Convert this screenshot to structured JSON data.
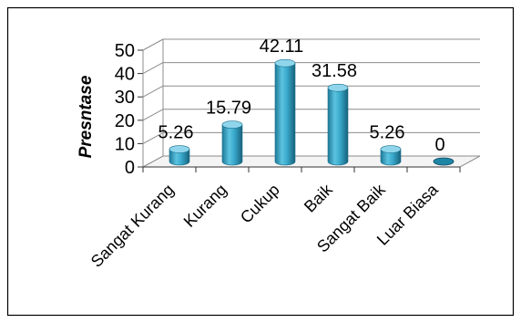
{
  "chart_data": {
    "type": "bar",
    "ylabel": "Presntase",
    "categories": [
      "Sangat Kurang",
      "Kurang",
      "Cukup",
      "Baik",
      "Sangat Baik",
      "Luar Biasa"
    ],
    "values": [
      5.26,
      15.79,
      42.11,
      31.58,
      5.26,
      0
    ],
    "data_labels": [
      "5.26",
      "15.79",
      "42.11",
      "31.58",
      "5.26",
      "0"
    ],
    "yticks": [
      "0",
      "10",
      "20",
      "30",
      "40",
      "50"
    ],
    "ylim": [
      0,
      50
    ],
    "grid": true,
    "legend": "none",
    "colors": {
      "bar": "#31a3c6",
      "bar_dark": "#1b6f8c",
      "bar_light": "#8fd6ec",
      "grid": "#8c8c8c",
      "frame": "#000000"
    }
  }
}
